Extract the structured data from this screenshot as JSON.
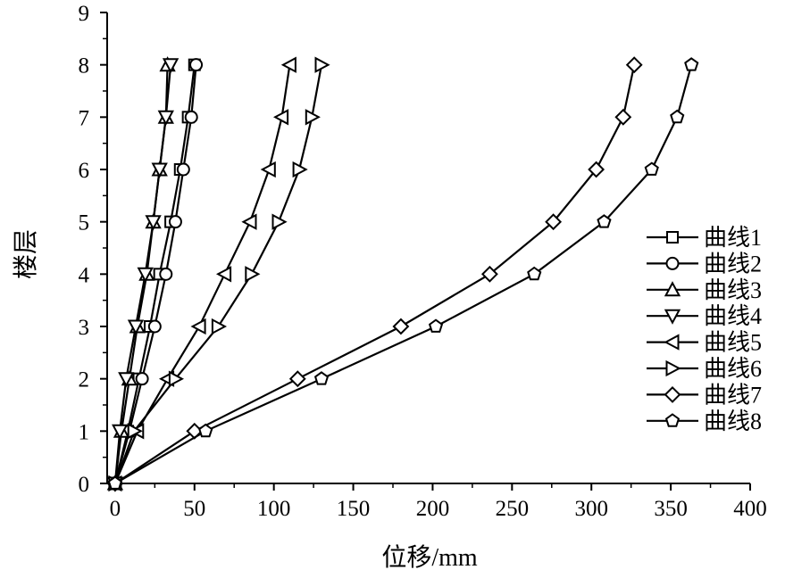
{
  "chart_data": {
    "type": "line",
    "title": "",
    "xlabel": "位移/mm",
    "ylabel": "楼层",
    "xlim": [
      -5,
      400
    ],
    "ylim": [
      0,
      9
    ],
    "xticks": [
      0,
      50,
      100,
      150,
      200,
      250,
      300,
      350,
      400
    ],
    "yticks": [
      0,
      1,
      2,
      3,
      4,
      5,
      6,
      7,
      8,
      9
    ],
    "grid": false,
    "legend_position": "right",
    "y": [
      0,
      1,
      2,
      3,
      4,
      5,
      6,
      7,
      8
    ],
    "series": [
      {
        "name": "曲线1",
        "marker": "square",
        "x": [
          0,
          8,
          15,
          22,
          28,
          35,
          41,
          46,
          50
        ]
      },
      {
        "name": "曲线2",
        "marker": "circle",
        "x": [
          0,
          9,
          17,
          25,
          32,
          38,
          43,
          48,
          51
        ]
      },
      {
        "name": "曲线3",
        "marker": "triangle-up",
        "x": [
          0,
          4,
          9,
          14,
          20,
          24,
          28,
          32,
          33
        ]
      },
      {
        "name": "曲线4",
        "marker": "triangle-down",
        "x": [
          0,
          3,
          7,
          13,
          19,
          24,
          28,
          32,
          35
        ]
      },
      {
        "name": "曲线5",
        "marker": "triangle-left",
        "x": [
          0,
          14,
          33,
          53,
          69,
          85,
          97,
          105,
          110
        ]
      },
      {
        "name": "曲线6",
        "marker": "triangle-right",
        "x": [
          0,
          12,
          38,
          65,
          86,
          103,
          116,
          124,
          130
        ]
      },
      {
        "name": "曲线7",
        "marker": "diamond",
        "x": [
          0,
          50,
          115,
          180,
          236,
          276,
          303,
          320,
          327
        ]
      },
      {
        "name": "曲线8",
        "marker": "pentagon",
        "x": [
          0,
          57,
          130,
          202,
          264,
          308,
          338,
          354,
          363
        ]
      }
    ]
  }
}
